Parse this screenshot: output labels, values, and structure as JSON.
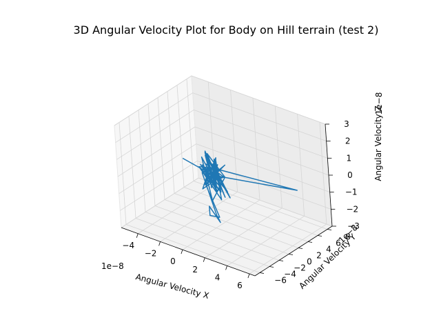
{
  "chart_data": {
    "type": "line",
    "projection": "3d",
    "title": "3D Angular Velocity Plot for Body on Hill terrain (test 2)",
    "xlabel": "Angular Velocity X",
    "ylabel": "Angular Velocity Y",
    "zlabel": "Angular Velocity Z",
    "x_offset_text": "1e−8",
    "y_offset_text": "1e−8",
    "z_offset_text": "1e−8",
    "xlim": [
      -5.5,
      6.5
    ],
    "ylim": [
      -7,
      9
    ],
    "zlim": [
      -3,
      3
    ],
    "x_ticks": [
      -4,
      -2,
      0,
      2,
      4,
      6
    ],
    "y_ticks": [
      -6,
      -4,
      -2,
      0,
      2,
      4,
      6,
      8
    ],
    "z_ticks": [
      -3,
      -2,
      -1,
      0,
      1,
      2,
      3
    ],
    "x_tick_labels": [
      "−4",
      "−2",
      "0",
      "2",
      "4",
      "6"
    ],
    "y_tick_labels": [
      "−6",
      "−4",
      "−2",
      "0",
      "2",
      "4",
      "6",
      "8"
    ],
    "z_tick_labels": [
      "−3",
      "−2",
      "−1",
      "0",
      "1",
      "2",
      "3"
    ],
    "grid": true,
    "series_color": "#1f77b4",
    "series": [
      {
        "x": [
          -1.5,
          -0.2,
          0.4,
          -0.8,
          0.6,
          -0.3,
          0.9,
          -1.1,
          0.2,
          -0.5,
          1.4,
          -0.9,
          0.3,
          0.0,
          -1.3,
          0.8,
          -0.2,
          0.6,
          -0.7,
          1.1,
          -0.4,
          0.5,
          -1.0,
          0.2,
          0.9,
          -0.6,
          0.1,
          -0.3,
          1.6,
          -0.8,
          0.4,
          -1.2,
          0.7,
          0.0,
          -0.5,
          1.0,
          -0.2,
          0.3,
          -0.9,
          0.5,
          -0.1,
          0.8,
          -1.4,
          0.2,
          -0.6,
          1.2,
          0.1,
          -0.3,
          0.6,
          3.5,
          0.3,
          -0.4,
          0.9,
          -0.7,
          0.2,
          0.5,
          0.0,
          -1.8,
          0.4,
          -0.2,
          0.7,
          -0.6,
          0.1,
          1.3,
          -0.9,
          0.3
        ],
        "y": [
          -2.5,
          0.1,
          -0.5,
          0.4,
          -0.2,
          0.8,
          -0.6,
          0.2,
          -0.9,
          0.5,
          -0.3,
          0.7,
          0.0,
          -1.1,
          0.6,
          -0.4,
          1.0,
          -0.7,
          0.3,
          -0.2,
          0.9,
          -0.5,
          0.2,
          -0.8,
          0.4,
          0.1,
          -0.6,
          1.2,
          -0.3,
          0.5,
          -1.0,
          0.3,
          -0.1,
          0.8,
          -0.7,
          0.2,
          -0.4,
          0.6,
          0.0,
          -0.9,
          0.7,
          -0.3,
          0.4,
          -0.6,
          1.1,
          -0.2,
          0.5,
          -0.8,
          0.3,
          9.0,
          0.2,
          -0.5,
          0.6,
          -0.1,
          0.4,
          -0.7,
          0.1,
          1.8,
          -0.4,
          0.8,
          -0.6,
          0.2,
          -1.3,
          -2.0,
          0.5,
          -0.2
        ],
        "z": [
          1.2,
          0.1,
          0.6,
          -0.7,
          0.9,
          -0.4,
          0.3,
          -1.0,
          0.8,
          0.2,
          -0.5,
          1.1,
          -0.8,
          0.4,
          0.0,
          -0.6,
          0.7,
          -0.3,
          1.3,
          -0.9,
          0.5,
          -0.2,
          0.9,
          -1.2,
          0.1,
          0.6,
          -0.5,
          0.3,
          -0.8,
          1.0,
          -0.1,
          0.4,
          -0.7,
          0.8,
          -0.4,
          0.2,
          1.4,
          -0.6,
          0.5,
          -0.3,
          0.9,
          -1.1,
          0.2,
          0.7,
          -0.4,
          0.3,
          -0.9,
          0.6,
          0.1,
          -1.6,
          0.5,
          -0.2,
          0.8,
          -0.6,
          1.1,
          -0.3,
          0.4,
          -0.5,
          -2.3,
          -2.5,
          -2.4,
          -1.9,
          -2.0,
          -1.7,
          -0.8,
          0.2
        ]
      }
    ]
  }
}
